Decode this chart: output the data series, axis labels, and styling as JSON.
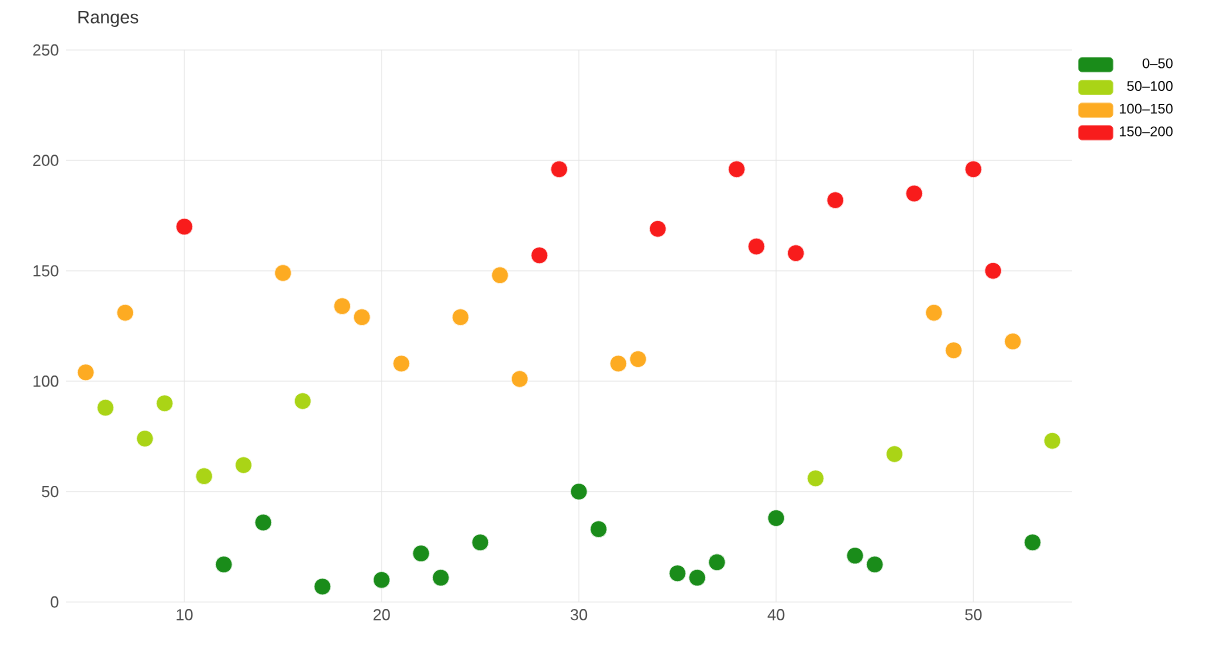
{
  "chart_data": {
    "type": "scatter",
    "title": "Ranges",
    "xlim": [
      4,
      55
    ],
    "ylim": [
      0,
      250
    ],
    "xticks": [
      10,
      20,
      30,
      40,
      50
    ],
    "yticks": [
      0,
      50,
      100,
      150,
      200,
      250
    ],
    "grid": true,
    "legend": "top right",
    "marker": "circle",
    "series": [
      {
        "name": "0–50",
        "color": "#1a8c1a",
        "x": [
          12,
          14,
          17,
          20,
          22,
          23,
          25,
          30,
          31,
          35,
          36,
          37,
          40,
          44,
          45,
          53
        ],
        "values": [
          17,
          36,
          7,
          10,
          22,
          11,
          27,
          50,
          33,
          13,
          11,
          18,
          38,
          21,
          17,
          27
        ]
      },
      {
        "name": "50–100",
        "color": "#aad416",
        "x": [
          6,
          8,
          9,
          11,
          13,
          16,
          42,
          46,
          54
        ],
        "values": [
          88,
          74,
          90,
          57,
          62,
          91,
          56,
          67,
          73
        ]
      },
      {
        "name": "100–150",
        "color": "#fdab22",
        "x": [
          5,
          7,
          15,
          18,
          19,
          21,
          24,
          26,
          27,
          32,
          33,
          48,
          49,
          52
        ],
        "values": [
          104,
          131,
          149,
          134,
          129,
          108,
          129,
          148,
          101,
          108,
          110,
          131,
          114,
          118
        ]
      },
      {
        "name": "150–200",
        "color": "#f81c1c",
        "x": [
          10,
          28,
          29,
          34,
          38,
          39,
          41,
          43,
          47,
          50,
          51
        ],
        "values": [
          170,
          157,
          196,
          169,
          196,
          161,
          158,
          182,
          185,
          196,
          150
        ]
      }
    ]
  }
}
